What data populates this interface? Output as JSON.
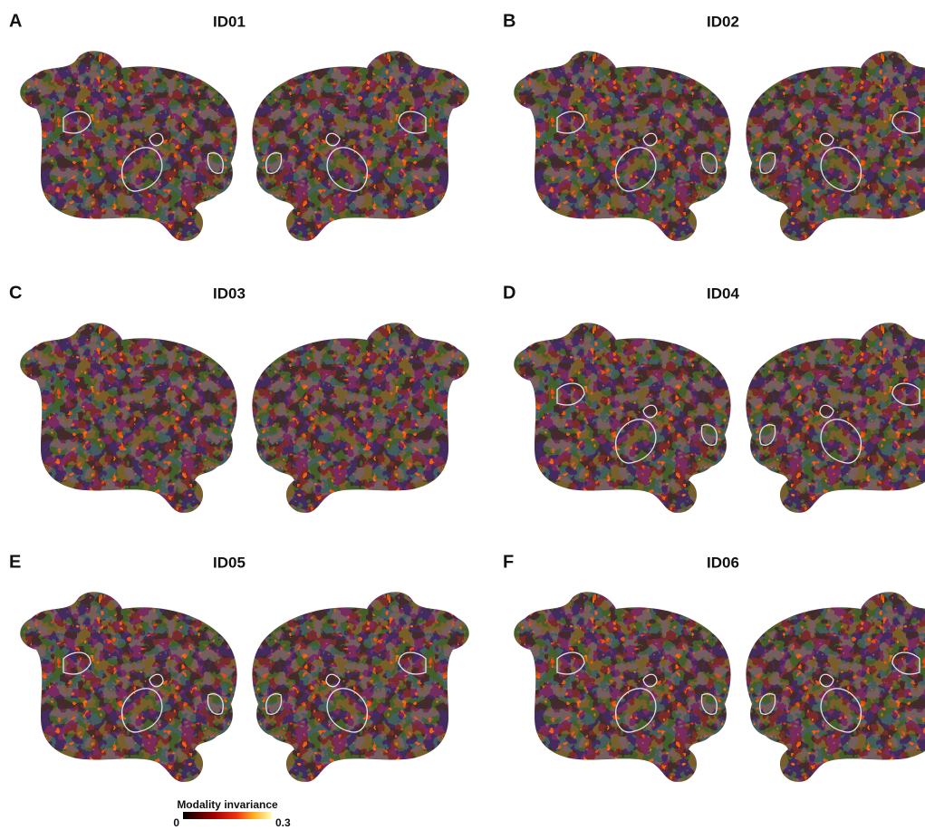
{
  "panels": [
    {
      "letter": "A",
      "title": "ID01"
    },
    {
      "letter": "B",
      "title": "ID02"
    },
    {
      "letter": "C",
      "title": "ID03"
    },
    {
      "letter": "D",
      "title": "ID04"
    },
    {
      "letter": "E",
      "title": "ID05"
    },
    {
      "letter": "F",
      "title": "ID06"
    }
  ],
  "colorbar": {
    "label": "Modality invariance",
    "ticks": [
      0,
      0.3
    ]
  }
}
